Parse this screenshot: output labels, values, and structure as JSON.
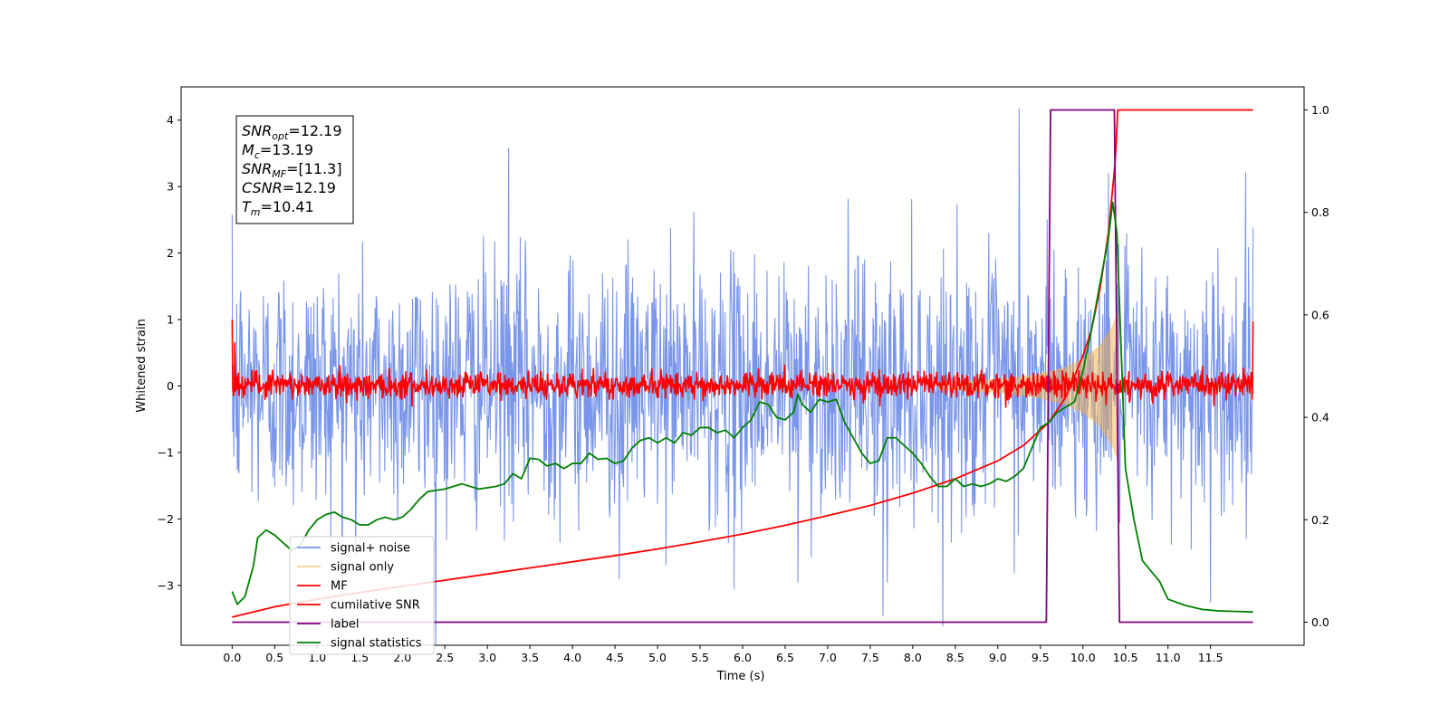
{
  "chart_data": {
    "type": "line",
    "xlabel": "Time (s)",
    "ylabel": "Whitened strain",
    "xlim": [
      -0.6,
      12.6
    ],
    "ylim": [
      -3.9,
      4.5
    ],
    "ylim_right": [
      -0.045,
      1.045
    ],
    "x_ticks": [
      0.0,
      0.5,
      1.0,
      1.5,
      2.0,
      2.5,
      3.0,
      3.5,
      4.0,
      4.5,
      5.0,
      5.5,
      6.0,
      6.5,
      7.0,
      7.5,
      8.0,
      8.5,
      9.0,
      9.5,
      10.0,
      10.5,
      11.0,
      11.5
    ],
    "x_tick_labels": [
      "0.0",
      "0.5",
      "1.0",
      "1.5",
      "2.0",
      "2.5",
      "3.0",
      "3.5",
      "4.0",
      "4.5",
      "5.0",
      "5.5",
      "6.0",
      "6.5",
      "7.0",
      "7.5",
      "8.0",
      "8.5",
      "9.0",
      "9.5",
      "10.0",
      "10.5",
      "11.0",
      "11.5"
    ],
    "y_ticks": [
      4,
      3,
      2,
      1,
      0,
      -1,
      -2,
      -3
    ],
    "y_tick_labels": [
      "4",
      "3",
      "2",
      "1",
      "0",
      "−1",
      "−2",
      "−3"
    ],
    "y_right_ticks": [
      1.0,
      0.8,
      0.6,
      0.4,
      0.2,
      0.0
    ],
    "y_right_tick_labels": [
      "1.0",
      "0.8",
      "0.6",
      "0.4",
      "0.2",
      "0.0"
    ],
    "grid": false,
    "legend_position": "lower-left",
    "annotation": {
      "lines": [
        {
          "var": "SNR",
          "sub": "opt",
          "value": "=12.19"
        },
        {
          "var": "M",
          "sub": "c",
          "value": "=13.19"
        },
        {
          "var": "SNR",
          "sub": "MF",
          "value": "=[11.3]"
        },
        {
          "var": "CSNR",
          "sub": "",
          "value": "=12.19"
        },
        {
          "var": "T",
          "sub": "m",
          "value": "=10.41"
        }
      ]
    },
    "series": [
      {
        "name": "signal+ noise",
        "axis": "left",
        "color": "#4169e1",
        "kind": "noise",
        "x_range": [
          0.0,
          12.0
        ],
        "band": [
          -1.1,
          1.1
        ],
        "extremes": [
          [
            0.0,
            2.58
          ],
          [
            0.06,
            -1.27
          ],
          [
            1.45,
            -2.55
          ],
          [
            3.25,
            3.58
          ],
          [
            4.55,
            -2.9
          ],
          [
            5.9,
            -3.05
          ],
          [
            6.65,
            -2.95
          ],
          [
            7.65,
            -3.45
          ],
          [
            7.7,
            -2.95
          ],
          [
            9.25,
            4.17
          ],
          [
            9.58,
            2.5
          ],
          [
            10.3,
            3.2
          ],
          [
            11.5,
            -3.25
          ],
          [
            12.0,
            2.38
          ]
        ]
      },
      {
        "name": "signal only",
        "axis": "left",
        "color": "#f5b14a",
        "kind": "chirp_envelope",
        "points": [
          [
            8.3,
            0.05
          ],
          [
            8.8,
            0.08
          ],
          [
            9.2,
            0.12
          ],
          [
            9.5,
            0.18
          ],
          [
            9.8,
            0.28
          ],
          [
            10.0,
            0.4
          ],
          [
            10.2,
            0.6
          ],
          [
            10.35,
            0.9
          ],
          [
            10.41,
            1.1
          ],
          [
            10.42,
            0.0
          ]
        ]
      },
      {
        "name": "MF",
        "axis": "left",
        "color": "#ff0000",
        "kind": "noise",
        "x_range": [
          0.0,
          12.0
        ],
        "band": [
          -0.1,
          0.13
        ],
        "extremes": [
          [
            0.0,
            1.0
          ],
          [
            0.03,
            0.65
          ],
          [
            0.05,
            0.15
          ],
          [
            11.98,
            0.2
          ],
          [
            12.0,
            0.97
          ]
        ]
      },
      {
        "name": "cumilative SNR",
        "axis": "right",
        "color": "#ff0000",
        "points": [
          [
            0.0,
            0.01
          ],
          [
            0.5,
            0.03
          ],
          [
            1.0,
            0.045
          ],
          [
            1.5,
            0.058
          ],
          [
            2.0,
            0.07
          ],
          [
            2.5,
            0.082
          ],
          [
            3.0,
            0.094
          ],
          [
            3.5,
            0.106
          ],
          [
            4.0,
            0.118
          ],
          [
            4.5,
            0.13
          ],
          [
            5.0,
            0.143
          ],
          [
            5.5,
            0.157
          ],
          [
            6.0,
            0.172
          ],
          [
            6.5,
            0.189
          ],
          [
            7.0,
            0.208
          ],
          [
            7.5,
            0.228
          ],
          [
            8.0,
            0.252
          ],
          [
            8.5,
            0.28
          ],
          [
            9.0,
            0.315
          ],
          [
            9.3,
            0.345
          ],
          [
            9.6,
            0.39
          ],
          [
            9.8,
            0.44
          ],
          [
            10.0,
            0.52
          ],
          [
            10.1,
            0.57
          ],
          [
            10.2,
            0.65
          ],
          [
            10.3,
            0.76
          ],
          [
            10.38,
            0.9
          ],
          [
            10.41,
            1.0
          ],
          [
            12.0,
            1.0
          ]
        ]
      },
      {
        "name": "label",
        "axis": "right",
        "color": "#800080",
        "points": [
          [
            0.0,
            0.0
          ],
          [
            9.57,
            0.0
          ],
          [
            9.62,
            1.0
          ],
          [
            10.37,
            1.0
          ],
          [
            10.43,
            0.0
          ],
          [
            12.0,
            0.0
          ]
        ]
      },
      {
        "name": "signal statistics",
        "axis": "right",
        "color": "#008000",
        "points": [
          [
            0.0,
            0.06
          ],
          [
            0.06,
            0.035
          ],
          [
            0.15,
            0.05
          ],
          [
            0.25,
            0.11
          ],
          [
            0.3,
            0.165
          ],
          [
            0.4,
            0.18
          ],
          [
            0.5,
            0.17
          ],
          [
            0.6,
            0.155
          ],
          [
            0.7,
            0.14
          ],
          [
            0.8,
            0.15
          ],
          [
            0.9,
            0.18
          ],
          [
            1.0,
            0.2
          ],
          [
            1.1,
            0.21
          ],
          [
            1.2,
            0.215
          ],
          [
            1.3,
            0.205
          ],
          [
            1.4,
            0.2
          ],
          [
            1.5,
            0.19
          ],
          [
            1.6,
            0.19
          ],
          [
            1.7,
            0.2
          ],
          [
            1.8,
            0.205
          ],
          [
            1.9,
            0.2
          ],
          [
            2.0,
            0.205
          ],
          [
            2.1,
            0.22
          ],
          [
            2.2,
            0.24
          ],
          [
            2.3,
            0.255
          ],
          [
            2.5,
            0.26
          ],
          [
            2.7,
            0.27
          ],
          [
            2.9,
            0.26
          ],
          [
            3.1,
            0.265
          ],
          [
            3.2,
            0.27
          ],
          [
            3.3,
            0.29
          ],
          [
            3.4,
            0.28
          ],
          [
            3.5,
            0.32
          ],
          [
            3.6,
            0.318
          ],
          [
            3.7,
            0.305
          ],
          [
            3.8,
            0.31
          ],
          [
            3.9,
            0.3
          ],
          [
            4.0,
            0.31
          ],
          [
            4.1,
            0.31
          ],
          [
            4.2,
            0.33
          ],
          [
            4.3,
            0.318
          ],
          [
            4.4,
            0.32
          ],
          [
            4.5,
            0.31
          ],
          [
            4.6,
            0.315
          ],
          [
            4.7,
            0.34
          ],
          [
            4.8,
            0.355
          ],
          [
            4.9,
            0.36
          ],
          [
            5.0,
            0.35
          ],
          [
            5.1,
            0.36
          ],
          [
            5.2,
            0.35
          ],
          [
            5.3,
            0.37
          ],
          [
            5.4,
            0.365
          ],
          [
            5.5,
            0.38
          ],
          [
            5.6,
            0.38
          ],
          [
            5.7,
            0.37
          ],
          [
            5.8,
            0.375
          ],
          [
            5.9,
            0.36
          ],
          [
            6.0,
            0.38
          ],
          [
            6.1,
            0.395
          ],
          [
            6.2,
            0.43
          ],
          [
            6.3,
            0.425
          ],
          [
            6.4,
            0.4
          ],
          [
            6.5,
            0.395
          ],
          [
            6.6,
            0.41
          ],
          [
            6.65,
            0.445
          ],
          [
            6.7,
            0.425
          ],
          [
            6.8,
            0.41
          ],
          [
            6.9,
            0.435
          ],
          [
            7.0,
            0.43
          ],
          [
            7.1,
            0.435
          ],
          [
            7.2,
            0.39
          ],
          [
            7.3,
            0.36
          ],
          [
            7.4,
            0.33
          ],
          [
            7.5,
            0.31
          ],
          [
            7.6,
            0.315
          ],
          [
            7.7,
            0.36
          ],
          [
            7.8,
            0.36
          ],
          [
            7.9,
            0.345
          ],
          [
            8.0,
            0.33
          ],
          [
            8.1,
            0.31
          ],
          [
            8.2,
            0.285
          ],
          [
            8.3,
            0.265
          ],
          [
            8.4,
            0.265
          ],
          [
            8.5,
            0.28
          ],
          [
            8.6,
            0.265
          ],
          [
            8.7,
            0.27
          ],
          [
            8.8,
            0.265
          ],
          [
            8.9,
            0.27
          ],
          [
            9.0,
            0.28
          ],
          [
            9.1,
            0.275
          ],
          [
            9.2,
            0.285
          ],
          [
            9.3,
            0.3
          ],
          [
            9.4,
            0.34
          ],
          [
            9.5,
            0.38
          ],
          [
            9.6,
            0.39
          ],
          [
            9.7,
            0.41
          ],
          [
            9.8,
            0.42
          ],
          [
            9.9,
            0.43
          ],
          [
            10.0,
            0.49
          ],
          [
            10.1,
            0.57
          ],
          [
            10.2,
            0.66
          ],
          [
            10.3,
            0.75
          ],
          [
            10.35,
            0.82
          ],
          [
            10.4,
            0.76
          ],
          [
            10.5,
            0.3
          ],
          [
            10.6,
            0.2
          ],
          [
            10.7,
            0.12
          ],
          [
            10.8,
            0.1
          ],
          [
            10.9,
            0.08
          ],
          [
            11.0,
            0.045
          ],
          [
            11.2,
            0.033
          ],
          [
            11.4,
            0.025
          ],
          [
            11.6,
            0.022
          ],
          [
            11.8,
            0.021
          ],
          [
            12.0,
            0.02
          ]
        ]
      }
    ]
  }
}
